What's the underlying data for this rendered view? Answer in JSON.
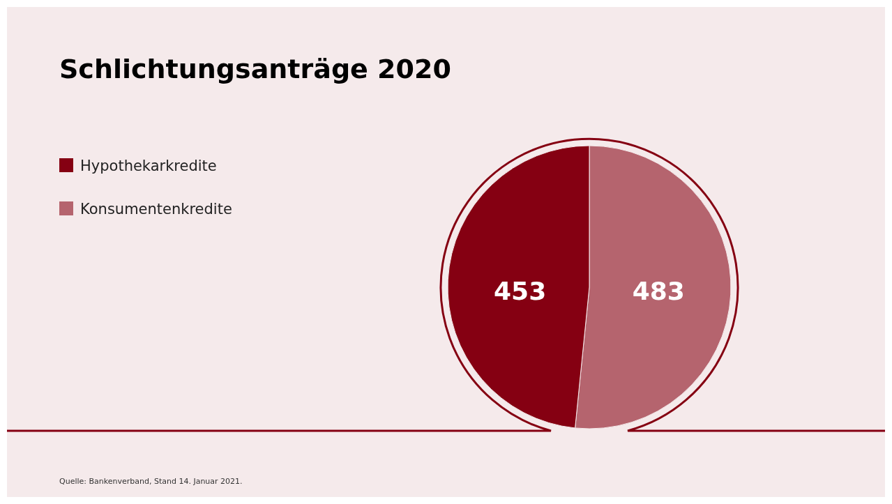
{
  "chart_data": {
    "type": "pie",
    "title": "Schlichtungsanträge 2020",
    "categories": [
      "Konsumentenkredite",
      "Hypothekarkredite"
    ],
    "values": [
      483,
      453
    ],
    "colors": [
      "#b5646e",
      "#850012"
    ],
    "data_labels": true,
    "legend": "top left",
    "annotations": [
      "Quelle: Bankenverband, Stand 14. Januar 2021."
    ]
  }
}
